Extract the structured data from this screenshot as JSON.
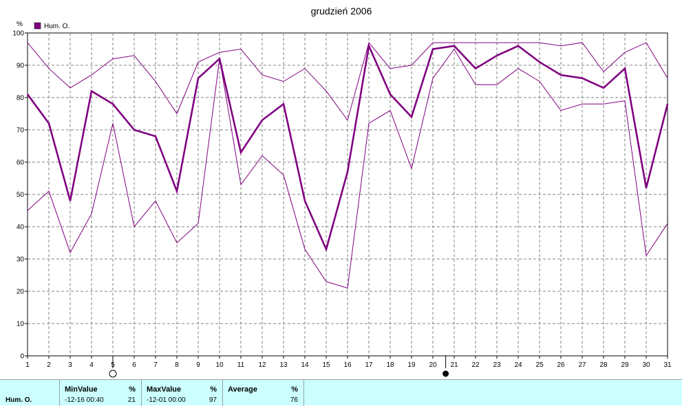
{
  "chart_data": {
    "type": "line",
    "title": "grudzień 2006",
    "ylabel": "%",
    "xlabel": "",
    "x": [
      1,
      2,
      3,
      4,
      5,
      6,
      7,
      8,
      9,
      10,
      11,
      12,
      13,
      14,
      15,
      16,
      17,
      18,
      19,
      20,
      21,
      22,
      23,
      24,
      25,
      26,
      27,
      28,
      29,
      30,
      31
    ],
    "ylim": [
      0,
      100
    ],
    "yticks": [
      0,
      10,
      20,
      30,
      40,
      50,
      60,
      70,
      80,
      90,
      100
    ],
    "grid": true,
    "legend": "top-left",
    "moon_phase_markers": [
      {
        "day": 5,
        "phase": "full-moon"
      },
      {
        "day": 20.6,
        "phase": "new-moon"
      }
    ],
    "series": [
      {
        "name": "Hum. O.",
        "role": "average",
        "color": "#800080",
        "values": [
          81,
          72,
          48,
          82,
          78,
          70,
          68,
          51,
          86,
          92,
          63,
          73,
          78,
          48,
          33,
          57,
          96,
          81,
          74,
          95,
          96,
          89,
          93,
          96,
          91,
          87,
          86,
          83,
          89,
          52,
          78
        ]
      },
      {
        "role": "max",
        "color": "#800080",
        "values": [
          97,
          89,
          83,
          87,
          92,
          93,
          85,
          75,
          91,
          94,
          95,
          87,
          85,
          89,
          82,
          73,
          97,
          89,
          90,
          97,
          97,
          97,
          97,
          97,
          97,
          96,
          97,
          88,
          94,
          97,
          86
        ]
      },
      {
        "role": "min",
        "color": "#800080",
        "values": [
          45,
          51,
          32,
          44,
          72,
          40,
          48,
          35,
          41,
          92,
          53,
          62,
          56,
          33,
          23,
          21,
          72,
          76,
          58,
          86,
          95,
          84,
          84,
          89,
          85,
          76,
          78,
          78,
          79,
          31,
          41
        ]
      }
    ]
  },
  "stats": {
    "series_label": "Hum. O.",
    "min": {
      "header": "MinValue",
      "unit": "%",
      "when": "-12-16  00:40",
      "value": "21"
    },
    "max": {
      "header": "MaxValue",
      "unit": "%",
      "when": "-12-01  00:00",
      "value": "97"
    },
    "avg": {
      "header": "Average",
      "unit": "%",
      "value": "76"
    }
  }
}
